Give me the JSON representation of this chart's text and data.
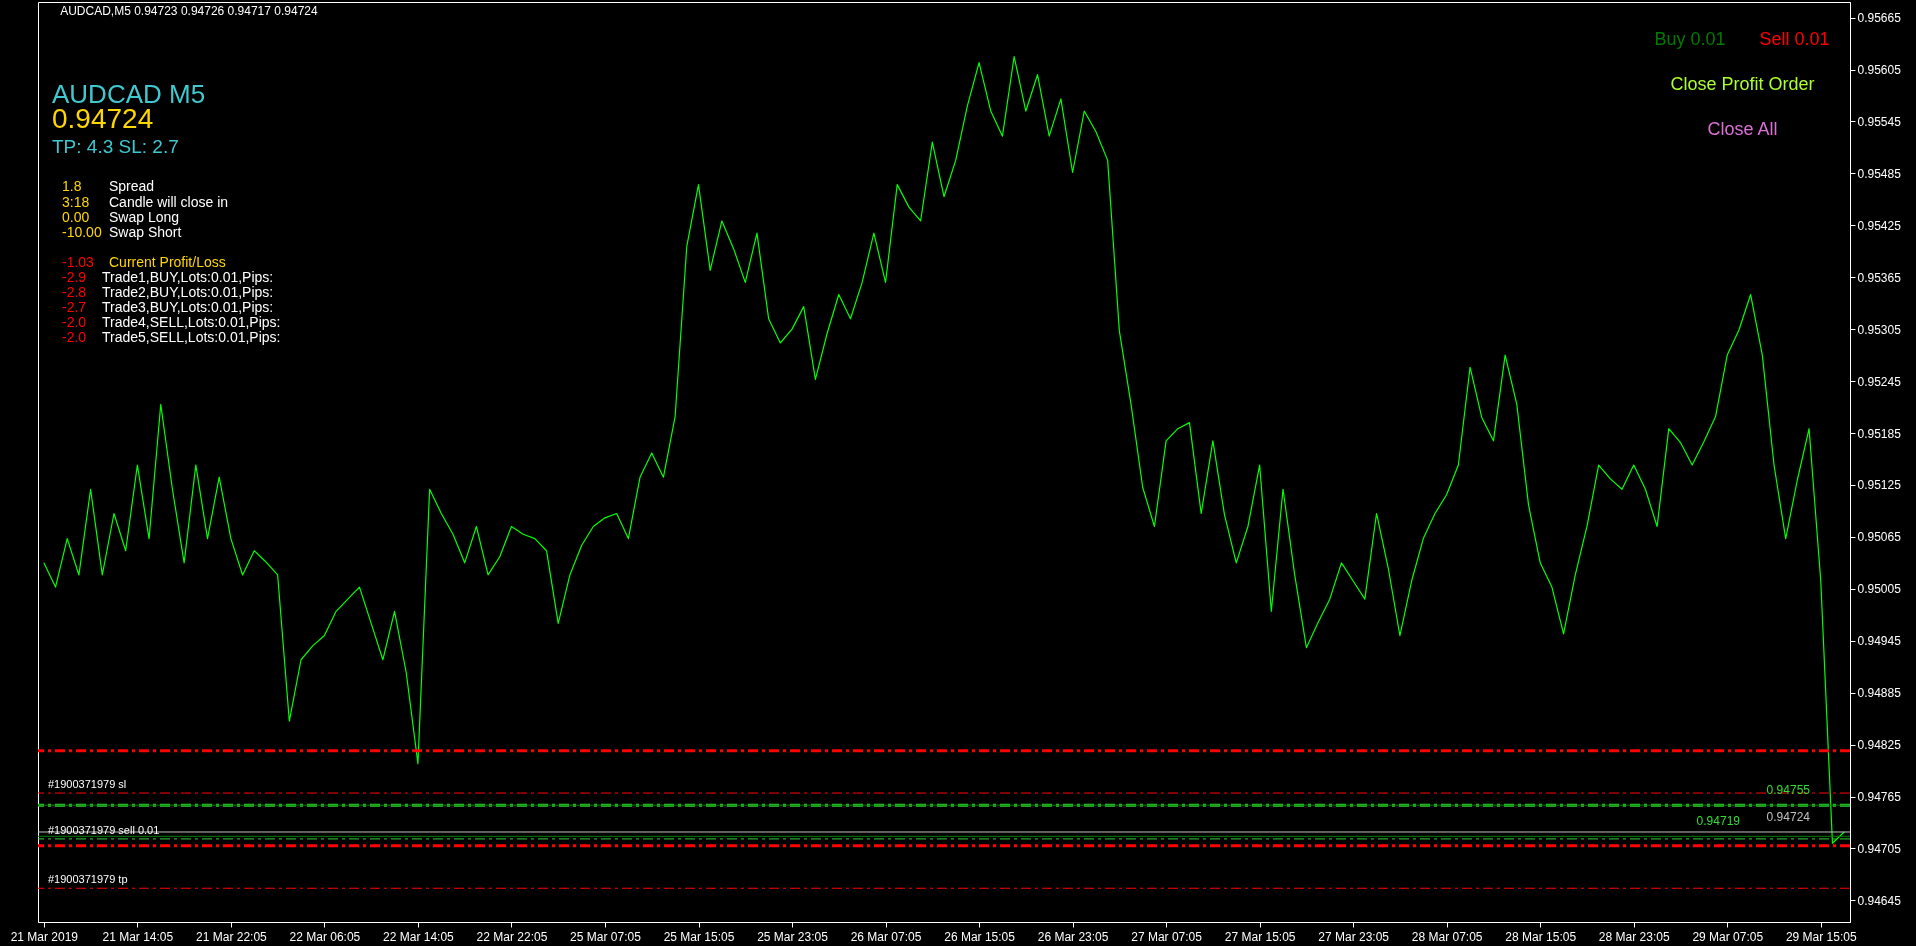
{
  "chart_data": {
    "type": "line",
    "title": "AUDCAD,M5  0.94723 0.94726 0.94717 0.94724",
    "categories": [
      "21 Mar 2019",
      null,
      null,
      null,
      null,
      null,
      null,
      null,
      "21 Mar 14:05",
      null,
      null,
      null,
      null,
      null,
      null,
      null,
      "21 Mar 22:05",
      null,
      null,
      null,
      null,
      null,
      null,
      null,
      "22 Mar 06:05",
      null,
      null,
      null,
      null,
      null,
      null,
      null,
      "22 Mar 14:05",
      null,
      null,
      null,
      null,
      null,
      null,
      null,
      "22 Mar 22:05",
      null,
      null,
      null,
      null,
      null,
      null,
      null,
      "25 Mar 07:05",
      null,
      null,
      null,
      null,
      null,
      null,
      null,
      "25 Mar 15:05",
      null,
      null,
      null,
      null,
      null,
      null,
      null,
      "25 Mar 23:05",
      null,
      null,
      null,
      null,
      null,
      null,
      null,
      "26 Mar 07:05",
      null,
      null,
      null,
      null,
      null,
      null,
      null,
      "26 Mar 15:05",
      null,
      null,
      null,
      null,
      null,
      null,
      null,
      "26 Mar 23:05",
      null,
      null,
      null,
      null,
      null,
      null,
      null,
      "27 Mar 07:05",
      null,
      null,
      null,
      null,
      null,
      null,
      null,
      "27 Mar 15:05",
      null,
      null,
      null,
      null,
      null,
      null,
      null,
      "27 Mar 23:05",
      null,
      null,
      null,
      null,
      null,
      null,
      null,
      "28 Mar 07:05",
      null,
      null,
      null,
      null,
      null,
      null,
      null,
      "28 Mar 15:05",
      null,
      null,
      null,
      null,
      null,
      null,
      null,
      "28 Mar 23:05",
      null,
      null,
      null,
      null,
      null,
      null,
      null,
      "29 Mar 07:05",
      null,
      null,
      null,
      null,
      null,
      null,
      null,
      "29 Mar 15:05",
      null,
      null
    ],
    "series": [
      {
        "color": "#00ff00",
        "values": [
          0.95035,
          0.95007,
          0.95063,
          0.95021,
          0.9512,
          0.95021,
          0.95092,
          0.95049,
          0.95148,
          0.95063,
          0.95218,
          0.9512,
          0.95035,
          0.95148,
          0.95063,
          0.95134,
          0.95063,
          0.95021,
          0.95049,
          0.95036,
          0.95021,
          0.94852,
          0.94923,
          0.94939,
          0.94951,
          0.94979,
          0.94993,
          0.95007,
          0.94965,
          0.94923,
          0.94979,
          0.94908,
          0.94803,
          0.9512,
          0.95092,
          0.95068,
          0.95035,
          0.95077,
          0.95021,
          0.95042,
          0.95077,
          0.95068,
          0.95063,
          0.95049,
          0.94965,
          0.95021,
          0.95055,
          0.95077,
          0.95087,
          0.95092,
          0.95063,
          0.95134,
          0.95162,
          0.95134,
          0.95204,
          0.95401,
          0.95472,
          0.95373,
          0.9543,
          0.95398,
          0.95359,
          0.95416,
          0.95317,
          0.95289,
          0.95305,
          0.95331,
          0.95247,
          0.953,
          0.95345,
          0.95317,
          0.95359,
          0.95416,
          0.95359,
          0.95472,
          0.95446,
          0.9543,
          0.95521,
          0.95458,
          0.955,
          0.95563,
          0.95613,
          0.95557,
          0.95528,
          0.9562,
          0.95557,
          0.95599,
          0.95528,
          0.95571,
          0.95486,
          0.95557,
          0.95533,
          0.955,
          0.95303,
          0.95218,
          0.95122,
          0.95077,
          0.95176,
          0.9519,
          0.95197,
          0.95092,
          0.95176,
          0.9509,
          0.95035,
          0.95077,
          0.95148,
          0.94979,
          0.9512,
          0.95021,
          0.94937,
          0.94966,
          0.94993,
          0.95035,
          0.95014,
          0.94993,
          0.95092,
          0.95029,
          0.94951,
          0.95014,
          0.95063,
          0.95092,
          0.95114,
          0.95148,
          0.95261,
          0.95203,
          0.95176,
          0.95275,
          0.95218,
          0.95102,
          0.95035,
          0.95007,
          0.94953,
          0.95021,
          0.95077,
          0.95148,
          0.95132,
          0.9512,
          0.95148,
          0.9512,
          0.95077,
          0.9519,
          0.95174,
          0.95148,
          0.95175,
          0.95204,
          0.95275,
          0.95304,
          0.95345,
          0.95275,
          0.95148,
          0.95063,
          0.95131,
          0.9519,
          0.95014,
          0.94711,
          0.94724
        ]
      }
    ],
    "ylim": [
      0.9462,
      0.95683
    ],
    "yticks": [
      0.95665,
      0.95605,
      0.95545,
      0.95485,
      0.95425,
      0.95365,
      0.95305,
      0.95245,
      0.95185,
      0.95125,
      0.95065,
      0.95005,
      0.94945,
      0.94885,
      0.94825,
      0.94765,
      0.94705,
      0.94645
    ],
    "grid": false,
    "line_style": "solid",
    "marker": "none",
    "ref_lines": [
      {
        "axis": "y",
        "value": 0.94818,
        "label": null,
        "color": "#ff0000",
        "line_style": "dashed"
      },
      {
        "axis": "y",
        "value": 0.94769,
        "label": "#1900371979 sl",
        "color": "#ff0000",
        "line_style": "dashed"
      },
      {
        "axis": "y",
        "value": 0.94755,
        "label": null,
        "color": "#32cd32",
        "line_style": "dashed"
      },
      {
        "axis": "y",
        "value": 0.94755,
        "label": "0.94755",
        "color": "#008000",
        "line_style": "solid"
      },
      {
        "axis": "y",
        "value": 0.94724,
        "label": "0.94724",
        "color": "#c0c0c0",
        "line_style": "solid"
      },
      {
        "axis": "y",
        "value": 0.94719,
        "label": "0.94719",
        "color": "#008000",
        "line_style": "solid"
      },
      {
        "axis": "y",
        "value": 0.94716,
        "label": "#1900371979 sell 0.01",
        "color": "#32cd32",
        "line_style": "dashed"
      },
      {
        "axis": "y",
        "value": 0.94708,
        "label": null,
        "color": "#ff0000",
        "line_style": "dashed"
      },
      {
        "axis": "y",
        "value": 0.94659,
        "label": "#1900371979 tp",
        "color": "#ff0000",
        "line_style": "dashed"
      }
    ],
    "annotations": [
      "AUDCAD M5",
      "0.94724",
      "TP: 4.3   SL: 2.7",
      "1.8",
      "Spread",
      "3:18",
      "Candle will close in",
      "0.00",
      "Swap Long",
      "-10.00",
      "Swap Short",
      "-1.03",
      "Current Profit/Loss",
      "-2.9",
      "Trade1,BUY,Lots:0.01,Pips:",
      "-2.8",
      "Trade2,BUY,Lots:0.01,Pips:",
      "-2.7",
      "Trade3,BUY,Lots:0.01,Pips:",
      "-2.0",
      "Trade4,SELL,Lots:0.01,Pips:",
      "-2.0",
      "Trade5,SELL,Lots:0.01,Pips:",
      "Buy 0.01",
      "Sell 0.01",
      "Close Profit Order",
      "Close All"
    ]
  }
}
